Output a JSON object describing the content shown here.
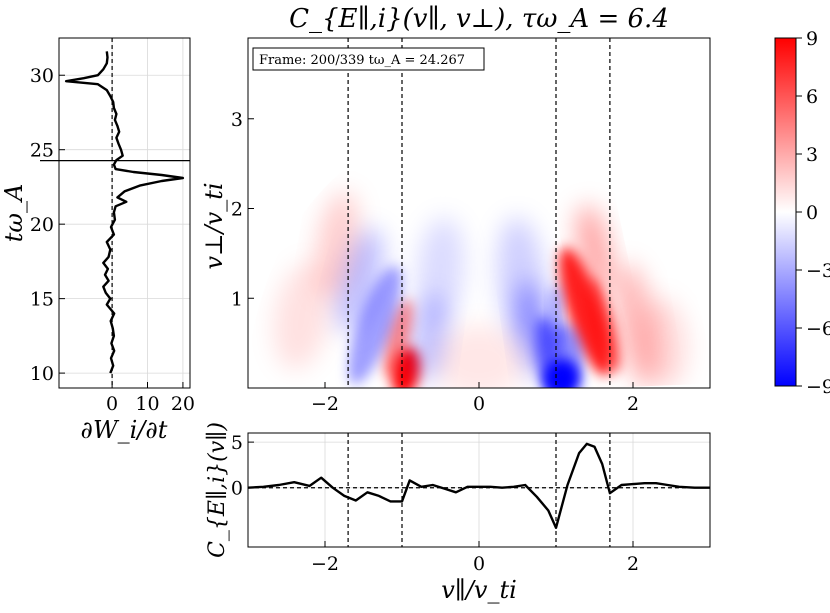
{
  "title": "C_{E∥,i}(v∥, v⊥), τω_A = 6.4",
  "frame_label": "Frame: 200/339 tω_A = 24.267",
  "colors": {
    "positive": "#ff0000",
    "negative": "#0000ff",
    "zero": "#ffffff",
    "line": "#000000",
    "grid": "#d9d9d9"
  },
  "chart_data": [
    {
      "type": "line",
      "name": "energy-rate-history",
      "xlabel": "∂W_i/∂t",
      "ylabel": "tω_A",
      "xlim": [
        -15,
        22
      ],
      "ylim": [
        9,
        32.5
      ],
      "xticks": [
        0,
        10,
        20
      ],
      "yticks": [
        10,
        15,
        20,
        25,
        30
      ],
      "grid": true,
      "current_time_marker": 24.267,
      "zero_line": 0,
      "points": [
        [
          -0.5,
          10.0
        ],
        [
          0.3,
          10.5
        ],
        [
          -0.3,
          11.0
        ],
        [
          0.6,
          11.5
        ],
        [
          -0.2,
          12.0
        ],
        [
          0.5,
          12.5
        ],
        [
          0.2,
          13.0
        ],
        [
          -0.4,
          13.5
        ],
        [
          0.6,
          14.0
        ],
        [
          -1.5,
          14.6
        ],
        [
          -0.5,
          15.0
        ],
        [
          -1.8,
          15.4
        ],
        [
          -2.5,
          15.8
        ],
        [
          -1.0,
          16.2
        ],
        [
          -2.0,
          16.6
        ],
        [
          -1.2,
          17.0
        ],
        [
          -2.5,
          17.4
        ],
        [
          -1.0,
          17.8
        ],
        [
          -0.5,
          18.3
        ],
        [
          -1.5,
          18.8
        ],
        [
          0.5,
          19.3
        ],
        [
          -0.3,
          19.8
        ],
        [
          0.8,
          20.3
        ],
        [
          0.5,
          20.8
        ],
        [
          1.0,
          21.2
        ],
        [
          4.0,
          21.5
        ],
        [
          1.5,
          21.8
        ],
        [
          3.5,
          22.2
        ],
        [
          8.0,
          22.6
        ],
        [
          14.0,
          22.9
        ],
        [
          20.0,
          23.1
        ],
        [
          14.0,
          23.3
        ],
        [
          6.0,
          23.5
        ],
        [
          1.0,
          23.7
        ],
        [
          0.5,
          24.0
        ],
        [
          1.2,
          24.3
        ],
        [
          3.0,
          24.6
        ],
        [
          2.5,
          25.0
        ],
        [
          1.8,
          25.4
        ],
        [
          1.2,
          25.8
        ],
        [
          2.0,
          26.2
        ],
        [
          1.5,
          26.6
        ],
        [
          0.8,
          27.0
        ],
        [
          1.2,
          27.4
        ],
        [
          0.5,
          27.8
        ],
        [
          0.3,
          28.2
        ],
        [
          -0.5,
          28.6
        ],
        [
          -1.5,
          29.0
        ],
        [
          -4.0,
          29.4
        ],
        [
          -13.0,
          29.6
        ],
        [
          -8.0,
          29.8
        ],
        [
          -4.0,
          30.0
        ],
        [
          -2.5,
          30.4
        ],
        [
          -1.5,
          30.8
        ],
        [
          -1.3,
          31.2
        ],
        [
          -1.5,
          31.6
        ]
      ]
    },
    {
      "type": "heatmap",
      "name": "velocity-space-correlation",
      "xlabel": "v∥/v_ti",
      "ylabel": "v⊥/v_ti",
      "xlim": [
        -3,
        3
      ],
      "ylim": [
        0,
        3.9
      ],
      "xticks": [
        -2,
        0,
        2
      ],
      "yticks": [
        1,
        2,
        3
      ],
      "vertical_lines": [
        -1.7,
        -1.0,
        1.0,
        1.7
      ],
      "colorbar": {
        "ticks": [
          9,
          6,
          3,
          0,
          -3,
          -6,
          -9
        ],
        "min": -9,
        "max": 9
      },
      "features": [
        {
          "v_par": 1.05,
          "v_perp": 0.1,
          "value": -9,
          "note": "strongest negative lobe near v∥≈1"
        },
        {
          "v_par": 1.4,
          "v_perp": 0.8,
          "value": 6,
          "note": "positive lobe"
        },
        {
          "v_par": -0.95,
          "v_perp": 0.1,
          "value": 8,
          "note": "positive lobe"
        },
        {
          "v_par": -1.4,
          "v_perp": 0.6,
          "value": -3,
          "note": "weak negative lobe"
        }
      ]
    },
    {
      "type": "line",
      "name": "reduced-correlation",
      "xlabel": "v∥/v_ti",
      "ylabel": "C_{E∥,i}(v∥)",
      "xlim": [
        -3,
        3
      ],
      "ylim": [
        -6.5,
        6
      ],
      "xticks": [
        -2,
        0,
        2
      ],
      "yticks": [
        0,
        5
      ],
      "grid": true,
      "vertical_lines": [
        -1.7,
        -1.0,
        1.0,
        1.7
      ],
      "x": [
        -3.0,
        -2.8,
        -2.6,
        -2.4,
        -2.2,
        -2.05,
        -1.9,
        -1.75,
        -1.6,
        -1.45,
        -1.3,
        -1.15,
        -1.0,
        -0.9,
        -0.75,
        -0.6,
        -0.45,
        -0.3,
        -0.15,
        0.0,
        0.15,
        0.3,
        0.45,
        0.6,
        0.75,
        0.9,
        1.0,
        1.15,
        1.3,
        1.4,
        1.5,
        1.6,
        1.7,
        1.85,
        2.0,
        2.15,
        2.3,
        2.45,
        2.6,
        2.8,
        3.0
      ],
      "y": [
        0.0,
        0.1,
        0.3,
        0.6,
        0.2,
        1.1,
        0.0,
        -0.9,
        -1.4,
        -0.5,
        -0.9,
        -1.5,
        -1.5,
        0.8,
        0.1,
        0.3,
        -0.1,
        -0.5,
        0.1,
        0.1,
        0.1,
        0.0,
        0.1,
        0.3,
        -1.0,
        -2.5,
        -4.4,
        0.3,
        3.8,
        4.8,
        4.5,
        2.6,
        -0.6,
        0.3,
        0.4,
        0.5,
        0.5,
        0.3,
        0.1,
        0.0,
        0.0
      ]
    }
  ]
}
